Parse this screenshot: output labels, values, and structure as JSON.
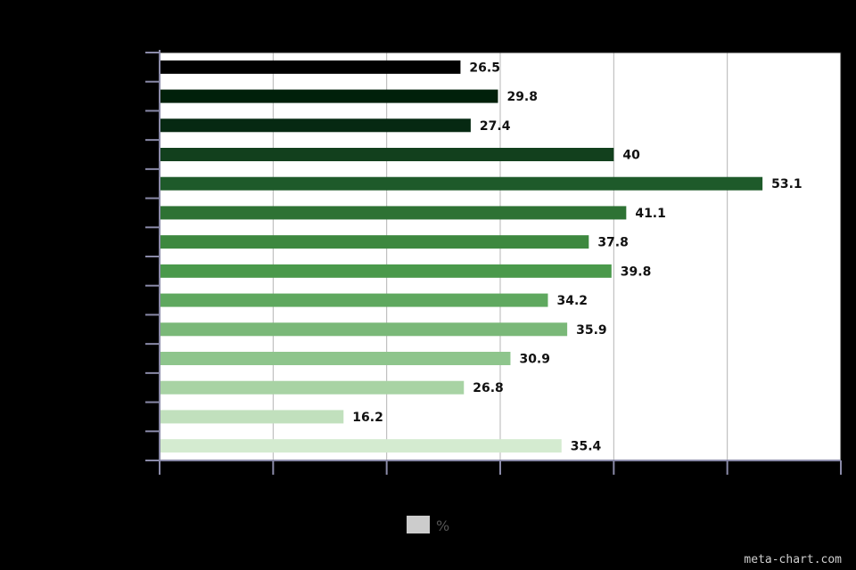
{
  "chart_data": {
    "type": "bar",
    "orientation": "horizontal",
    "categories": [
      "",
      "",
      "",
      "",
      "",
      "",
      "",
      "",
      "",
      "",
      "",
      "",
      "",
      ""
    ],
    "series": [
      {
        "name": "%",
        "values": [
          26.5,
          29.8,
          27.4,
          40,
          53.1,
          41.1,
          37.8,
          39.8,
          34.2,
          35.9,
          30.9,
          26.8,
          16.2,
          35.4
        ],
        "value_labels": [
          "26.5",
          "29.8",
          "27.4",
          "40",
          "53.1",
          "41.1",
          "37.8",
          "39.8",
          "34.2",
          "35.9",
          "30.9",
          "26.8",
          "16.2",
          "35.4"
        ]
      }
    ],
    "bar_colors": [
      "#000000",
      "#00200a",
      "#062912",
      "#12401d",
      "#1e5a2a",
      "#2e7234",
      "#3d883f",
      "#4a994b",
      "#5fa85f",
      "#7ab878",
      "#8ec58c",
      "#a8d3a4",
      "#c1e0bd",
      "#d4ebd0"
    ],
    "xlim": [
      0,
      60
    ],
    "grid": true,
    "legend_position": "bottom",
    "legend_swatch_color": "#cccccc",
    "title": "",
    "xlabel": "",
    "ylabel": ""
  },
  "watermark": "meta-chart.com"
}
